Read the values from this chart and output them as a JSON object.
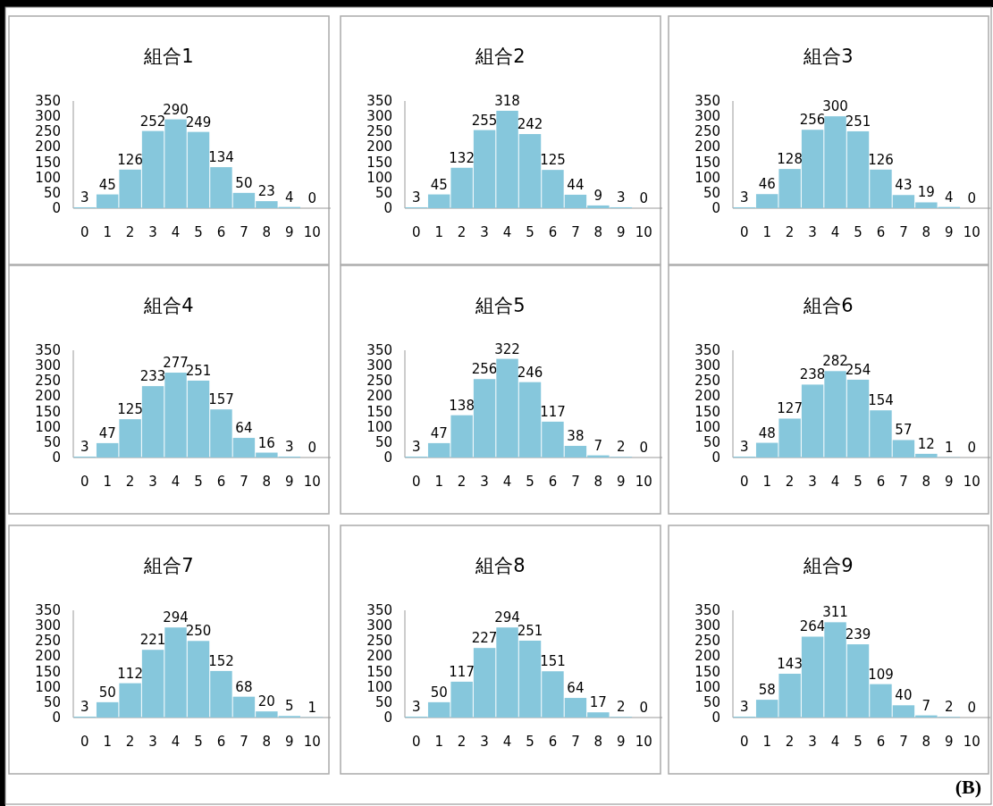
{
  "chart_data": [
    {
      "type": "bar",
      "title": "組合1",
      "categories": [
        "0",
        "1",
        "2",
        "3",
        "4",
        "5",
        "6",
        "7",
        "8",
        "9",
        "10"
      ],
      "values": [
        3,
        45,
        126,
        252,
        290,
        249,
        134,
        50,
        23,
        4,
        0
      ],
      "color": "#86c7dc",
      "ylim": [
        0,
        350
      ],
      "yticks": [
        0,
        50,
        100,
        150,
        200,
        250,
        300,
        350
      ],
      "data_labels": true
    },
    {
      "type": "bar",
      "title": "組合2",
      "categories": [
        "0",
        "1",
        "2",
        "3",
        "4",
        "5",
        "6",
        "7",
        "8",
        "9",
        "10"
      ],
      "values": [
        3,
        45,
        132,
        255,
        318,
        242,
        125,
        44,
        9,
        3,
        0
      ],
      "color": "#86c7dc",
      "ylim": [
        0,
        350
      ],
      "yticks": [
        0,
        50,
        100,
        150,
        200,
        250,
        300,
        350
      ],
      "data_labels": true
    },
    {
      "type": "bar",
      "title": "組合3",
      "categories": [
        "0",
        "1",
        "2",
        "3",
        "4",
        "5",
        "6",
        "7",
        "8",
        "9",
        "10"
      ],
      "values": [
        3,
        46,
        128,
        256,
        300,
        251,
        126,
        43,
        19,
        4,
        0
      ],
      "color": "#86c7dc",
      "ylim": [
        0,
        350
      ],
      "yticks": [
        0,
        50,
        100,
        150,
        200,
        250,
        300,
        350
      ],
      "data_labels": true
    },
    {
      "type": "bar",
      "title": "組合4",
      "categories": [
        "0",
        "1",
        "2",
        "3",
        "4",
        "5",
        "6",
        "7",
        "8",
        "9",
        "10"
      ],
      "values": [
        3,
        47,
        125,
        233,
        277,
        251,
        157,
        64,
        16,
        3,
        0
      ],
      "color": "#86c7dc",
      "ylim": [
        0,
        350
      ],
      "yticks": [
        0,
        50,
        100,
        150,
        200,
        250,
        300,
        350
      ],
      "data_labels": true
    },
    {
      "type": "bar",
      "title": "組合5",
      "categories": [
        "0",
        "1",
        "2",
        "3",
        "4",
        "5",
        "6",
        "7",
        "8",
        "9",
        "10"
      ],
      "values": [
        3,
        47,
        138,
        256,
        322,
        246,
        117,
        38,
        7,
        2,
        0
      ],
      "color": "#86c7dc",
      "ylim": [
        0,
        350
      ],
      "yticks": [
        0,
        50,
        100,
        150,
        200,
        250,
        300,
        350
      ],
      "data_labels": true
    },
    {
      "type": "bar",
      "title": "組合6",
      "categories": [
        "0",
        "1",
        "2",
        "3",
        "4",
        "5",
        "6",
        "7",
        "8",
        "9",
        "10"
      ],
      "values": [
        3,
        48,
        127,
        238,
        282,
        254,
        154,
        57,
        12,
        1,
        0
      ],
      "color": "#86c7dc",
      "ylim": [
        0,
        350
      ],
      "yticks": [
        0,
        50,
        100,
        150,
        200,
        250,
        300,
        350
      ],
      "data_labels": true
    },
    {
      "type": "bar",
      "title": "組合7",
      "categories": [
        "0",
        "1",
        "2",
        "3",
        "4",
        "5",
        "6",
        "7",
        "8",
        "9",
        "10"
      ],
      "values": [
        3,
        50,
        112,
        221,
        294,
        250,
        152,
        68,
        20,
        5,
        1
      ],
      "color": "#86c7dc",
      "ylim": [
        0,
        350
      ],
      "yticks": [
        0,
        50,
        100,
        150,
        200,
        250,
        300,
        350
      ],
      "data_labels": true
    },
    {
      "type": "bar",
      "title": "組合8",
      "categories": [
        "0",
        "1",
        "2",
        "3",
        "4",
        "5",
        "6",
        "7",
        "8",
        "9",
        "10"
      ],
      "values": [
        3,
        50,
        117,
        227,
        294,
        251,
        151,
        64,
        17,
        2,
        0
      ],
      "color": "#86c7dc",
      "ylim": [
        0,
        350
      ],
      "yticks": [
        0,
        50,
        100,
        150,
        200,
        250,
        300,
        350
      ],
      "data_labels": true
    },
    {
      "type": "bar",
      "title": "組合9",
      "categories": [
        "0",
        "1",
        "2",
        "3",
        "4",
        "5",
        "6",
        "7",
        "8",
        "9",
        "10"
      ],
      "values": [
        3,
        58,
        143,
        264,
        311,
        239,
        109,
        40,
        7,
        2,
        0
      ],
      "color": "#86c7dc",
      "ylim": [
        0,
        350
      ],
      "yticks": [
        0,
        50,
        100,
        150,
        200,
        250,
        300,
        350
      ],
      "data_labels": true,
      "annotations": [
        "(B)"
      ]
    }
  ]
}
